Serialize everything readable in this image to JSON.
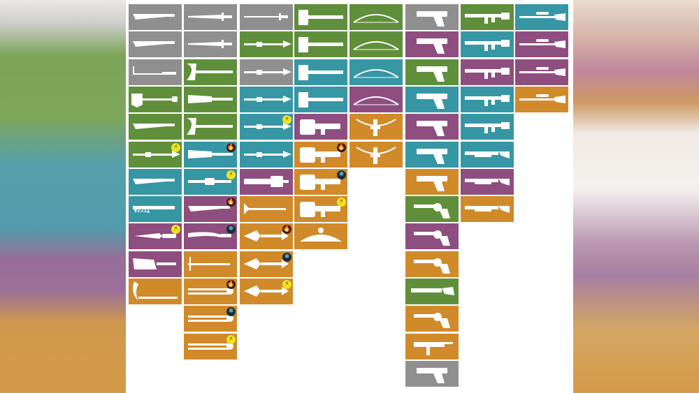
{
  "colors": {
    "gray": "#8f8f8f",
    "green": "#5f8f3a",
    "teal": "#3796a4",
    "purple": "#8e4e7f",
    "orange": "#d08a2a",
    "sheet": "#ffffff"
  },
  "element_icons": {
    "shock": {
      "glyph": "⚡",
      "icon": "lightning-bolt-icon"
    },
    "fire": {
      "glyph": "🔥",
      "icon": "flame-icon"
    },
    "ice": {
      "glyph": "❄",
      "icon": "snowflake-icon"
    }
  },
  "columns": [
    {
      "name": "melee-blades",
      "tiles": [
        {
          "rarity": "gray",
          "weapon": "machete"
        },
        {
          "rarity": "gray",
          "weapon": "machete"
        },
        {
          "rarity": "gray",
          "weapon": "crowbar"
        },
        {
          "rarity": "green",
          "weapon": "shovel"
        },
        {
          "rarity": "green",
          "weapon": "machete"
        },
        {
          "rarity": "green",
          "weapon": "spear",
          "element": "shock"
        },
        {
          "rarity": "teal",
          "weapon": "machete"
        },
        {
          "rarity": "teal",
          "weapon": "saw-blade"
        },
        {
          "rarity": "purple",
          "weapon": "knife",
          "element": "shock"
        },
        {
          "rarity": "purple",
          "weapon": "cleaver"
        },
        {
          "rarity": "orange",
          "weapon": "scythe"
        }
      ]
    },
    {
      "name": "melee-blunt",
      "tiles": [
        {
          "rarity": "gray",
          "weapon": "sword"
        },
        {
          "rarity": "gray",
          "weapon": "sword"
        },
        {
          "rarity": "green",
          "weapon": "axe"
        },
        {
          "rarity": "green",
          "weapon": "club"
        },
        {
          "rarity": "green",
          "weapon": "axe"
        },
        {
          "rarity": "teal",
          "weapon": "club",
          "element": "fire"
        },
        {
          "rarity": "teal",
          "weapon": "staff",
          "element": "shock"
        },
        {
          "rarity": "purple",
          "weapon": "machete",
          "element": "fire"
        },
        {
          "rarity": "purple",
          "weapon": "katana",
          "element": "ice"
        },
        {
          "rarity": "orange",
          "weapon": "trident"
        },
        {
          "rarity": "orange",
          "weapon": "rod",
          "element": "fire"
        },
        {
          "rarity": "orange",
          "weapon": "rod",
          "element": "ice"
        },
        {
          "rarity": "orange",
          "weapon": "rod",
          "element": "shock"
        }
      ]
    },
    {
      "name": "melee-polearms",
      "tiles": [
        {
          "rarity": "gray",
          "weapon": "rapier"
        },
        {
          "rarity": "green",
          "weapon": "spear"
        },
        {
          "rarity": "gray",
          "weapon": "spear"
        },
        {
          "rarity": "teal",
          "weapon": "spear"
        },
        {
          "rarity": "teal",
          "weapon": "spear",
          "element": "shock"
        },
        {
          "rarity": "teal",
          "weapon": "spear"
        },
        {
          "rarity": "purple",
          "weapon": "chainsaw"
        },
        {
          "rarity": "orange",
          "weapon": "harpoon"
        },
        {
          "rarity": "orange",
          "weapon": "blade-staff",
          "element": "fire"
        },
        {
          "rarity": "orange",
          "weapon": "blade-staff",
          "element": "ice"
        },
        {
          "rarity": "orange",
          "weapon": "blade-staff",
          "element": "shock"
        }
      ]
    },
    {
      "name": "heavy",
      "tiles": [
        {
          "rarity": "green",
          "weapon": "sledgehammer"
        },
        {
          "rarity": "green",
          "weapon": "sledgehammer"
        },
        {
          "rarity": "teal",
          "weapon": "sledgehammer"
        },
        {
          "rarity": "teal",
          "weapon": "sledgehammer"
        },
        {
          "rarity": "purple",
          "weapon": "launcher"
        },
        {
          "rarity": "orange",
          "weapon": "launcher",
          "element": "fire"
        },
        {
          "rarity": "orange",
          "weapon": "launcher",
          "element": "ice"
        },
        {
          "rarity": "orange",
          "weapon": "launcher",
          "element": "shock"
        },
        {
          "rarity": "orange",
          "weapon": "mine"
        }
      ]
    },
    {
      "name": "bows",
      "tiles": [
        {
          "rarity": "green",
          "weapon": "bow"
        },
        {
          "rarity": "green",
          "weapon": "bow"
        },
        {
          "rarity": "teal",
          "weapon": "bow"
        },
        {
          "rarity": "purple",
          "weapon": "bow"
        },
        {
          "rarity": "orange",
          "weapon": "crossbow"
        },
        {
          "rarity": "orange",
          "weapon": "crossbow"
        }
      ]
    },
    {
      "name": "pistols",
      "tiles": [
        {
          "rarity": "gray",
          "weapon": "pistol"
        },
        {
          "rarity": "purple",
          "weapon": "pistol"
        },
        {
          "rarity": "green",
          "weapon": "pistol"
        },
        {
          "rarity": "teal",
          "weapon": "pistol"
        },
        {
          "rarity": "purple",
          "weapon": "pistol"
        },
        {
          "rarity": "teal",
          "weapon": "pistol"
        },
        {
          "rarity": "orange",
          "weapon": "pistol"
        },
        {
          "rarity": "green",
          "weapon": "revolver"
        },
        {
          "rarity": "purple",
          "weapon": "revolver"
        },
        {
          "rarity": "orange",
          "weapon": "revolver"
        },
        {
          "rarity": "green",
          "weapon": "sawed-off"
        },
        {
          "rarity": "orange",
          "weapon": "revolver"
        },
        {
          "rarity": "orange",
          "weapon": "smg"
        },
        {
          "rarity": "gray",
          "weapon": "pistol"
        }
      ]
    },
    {
      "name": "rifles",
      "tiles": [
        {
          "rarity": "green",
          "weapon": "rifle"
        },
        {
          "rarity": "teal",
          "weapon": "rifle"
        },
        {
          "rarity": "purple",
          "weapon": "rifle"
        },
        {
          "rarity": "teal",
          "weapon": "rifle"
        },
        {
          "rarity": "teal",
          "weapon": "rifle"
        },
        {
          "rarity": "teal",
          "weapon": "shotgun"
        },
        {
          "rarity": "purple",
          "weapon": "shotgun"
        },
        {
          "rarity": "orange",
          "weapon": "shotgun"
        }
      ]
    },
    {
      "name": "snipers",
      "tiles": [
        {
          "rarity": "teal",
          "weapon": "sniper"
        },
        {
          "rarity": "purple",
          "weapon": "sniper"
        },
        {
          "rarity": "purple",
          "weapon": "sniper"
        },
        {
          "rarity": "orange",
          "weapon": "sniper"
        }
      ]
    }
  ]
}
